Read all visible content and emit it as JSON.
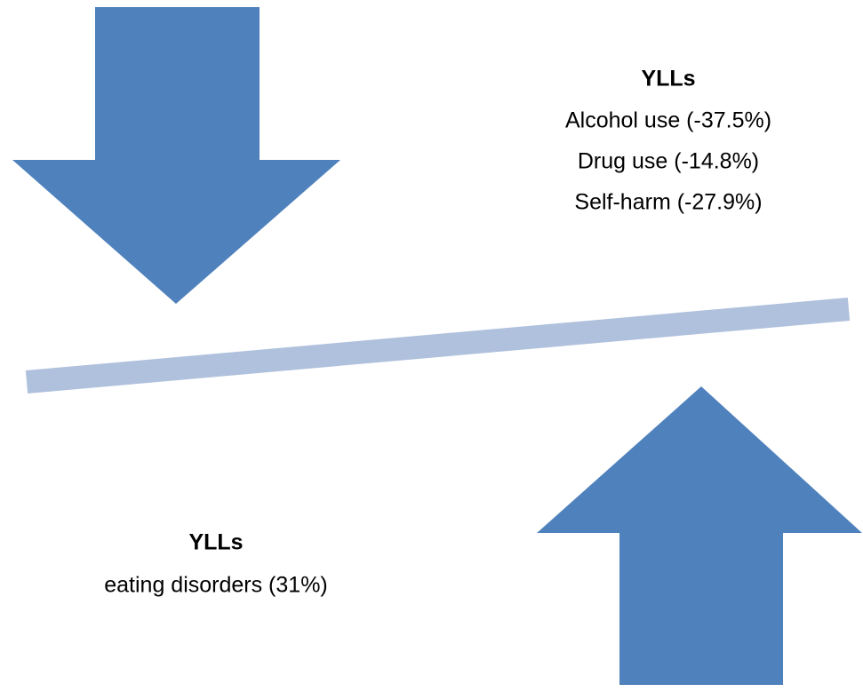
{
  "top_group": {
    "heading": "YLLs",
    "items": [
      "Alcohol use (-37.5%)",
      "Drug use (-14.8%)",
      "Self-harm (-27.9%)"
    ]
  },
  "bottom_group": {
    "heading": "YLLs",
    "items": [
      "eating disorders (31%)"
    ]
  }
}
